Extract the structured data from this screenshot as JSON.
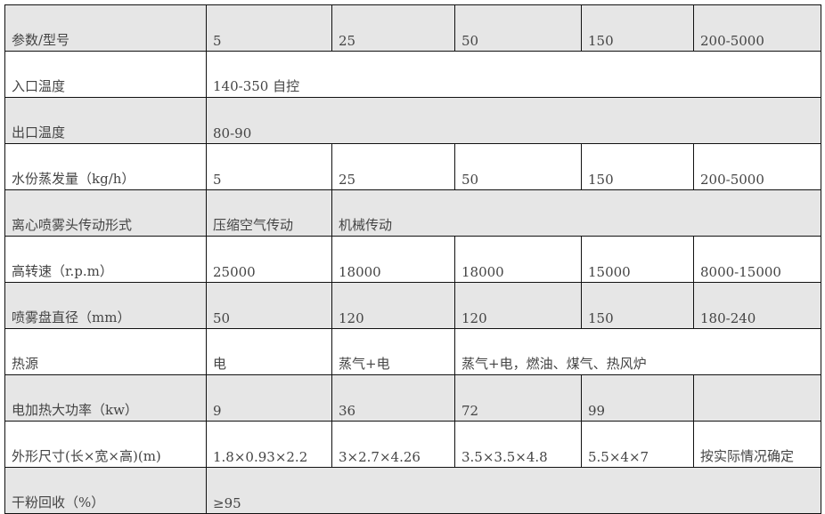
{
  "rows": [
    {
      "label": "参数/型号",
      "cells": [
        "5",
        "25",
        "50",
        "150",
        "200-5000"
      ]
    },
    {
      "label": "入口温度",
      "cells": [
        "140-350 自控"
      ]
    },
    {
      "label": "出口温度",
      "cells": [
        "80-90"
      ]
    },
    {
      "label": "水份蒸发量（kg/h）",
      "cells": [
        "5",
        "25",
        "50",
        "150",
        "200-5000"
      ]
    },
    {
      "label": "离心喷雾头传动形式",
      "cells": [
        "压缩空气传动",
        "机械传动"
      ]
    },
    {
      "label": "高转速（r.p.m）",
      "cells": [
        "25000",
        "18000",
        "18000",
        "15000",
        "8000-15000"
      ]
    },
    {
      "label": "喷雾盘直径（mm）",
      "cells": [
        "50",
        "120",
        "120",
        "150",
        "180-240"
      ]
    },
    {
      "label": "热源",
      "cells": [
        "电",
        "蒸气+电",
        "蒸气+电，燃油、煤气、热风炉"
      ]
    },
    {
      "label": "电加热大功率（kw）",
      "cells": [
        "9",
        "36",
        "72",
        "99",
        ""
      ]
    },
    {
      "label": "外形尺寸(长×宽×高)(m)",
      "cells": [
        "1.8×0.93×2.2",
        "3×2.7×4.26",
        "3.5×3.5×4.8",
        "5.5×4×7",
        "按实际情况确定"
      ]
    },
    {
      "label": "干粉回收（%）",
      "cells": [
        "≥95"
      ]
    }
  ]
}
